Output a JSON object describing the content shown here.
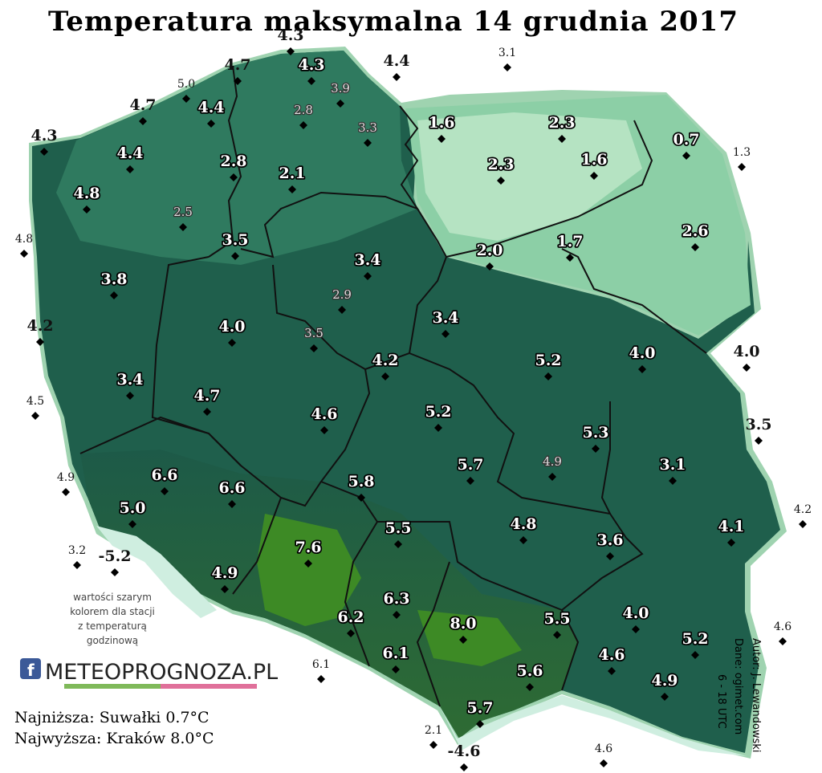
{
  "title": "Temperatura maksymalna 14 grudnia 2017",
  "stations": [
    "4.3",
    "4.7",
    "4.4",
    "3.1",
    "5.0",
    "4.7",
    "4.3",
    "1.3",
    "4.8",
    "4.2",
    "4.5",
    "4.9",
    "3.2",
    "-5.2",
    "4.0",
    "3.5",
    "4.2",
    "4.6",
    "6.1",
    "2.1",
    "-4.6",
    "4.6",
    "4.3",
    "3.9",
    "2.8",
    "3.3",
    "4.4",
    "1.6",
    "2.3",
    "0.7",
    "4.4",
    "2.8",
    "2.1",
    "2.3",
    "1.6",
    "4.8",
    "2.5",
    "2.6",
    "3.5",
    "2.0",
    "1.7",
    "3.4",
    "3.8",
    "2.9",
    "3.4",
    "4.0",
    "3.5",
    "4.2",
    "5.2",
    "4.0",
    "3.4",
    "4.7",
    "4.6",
    "5.2",
    "5.3",
    "3.1",
    "5.7",
    "4.9",
    "6.6",
    "6.6",
    "5.8",
    "5.0",
    "5.5",
    "4.8",
    "4.1",
    "3.6",
    "7.6",
    "4.9",
    "6.3",
    "8.0",
    "6.2",
    "5.5",
    "4.0",
    "5.2",
    "6.1",
    "4.6",
    "5.6",
    "4.9",
    "5.7"
  ],
  "note": [
    "wartości szarym",
    "kolorem dla stacji",
    "z temperaturą",
    "godzinową"
  ],
  "logo": "METEOPROGNOZA.PL",
  "lowest": "Najniższa: Suwałki 0.7°C",
  "highest": "Najwyższa: Kraków 8.0°C",
  "credits": [
    "Autor: J. Lewandowski",
    "Dane: ogimet.com",
    "6 - 18 UTC"
  ]
}
